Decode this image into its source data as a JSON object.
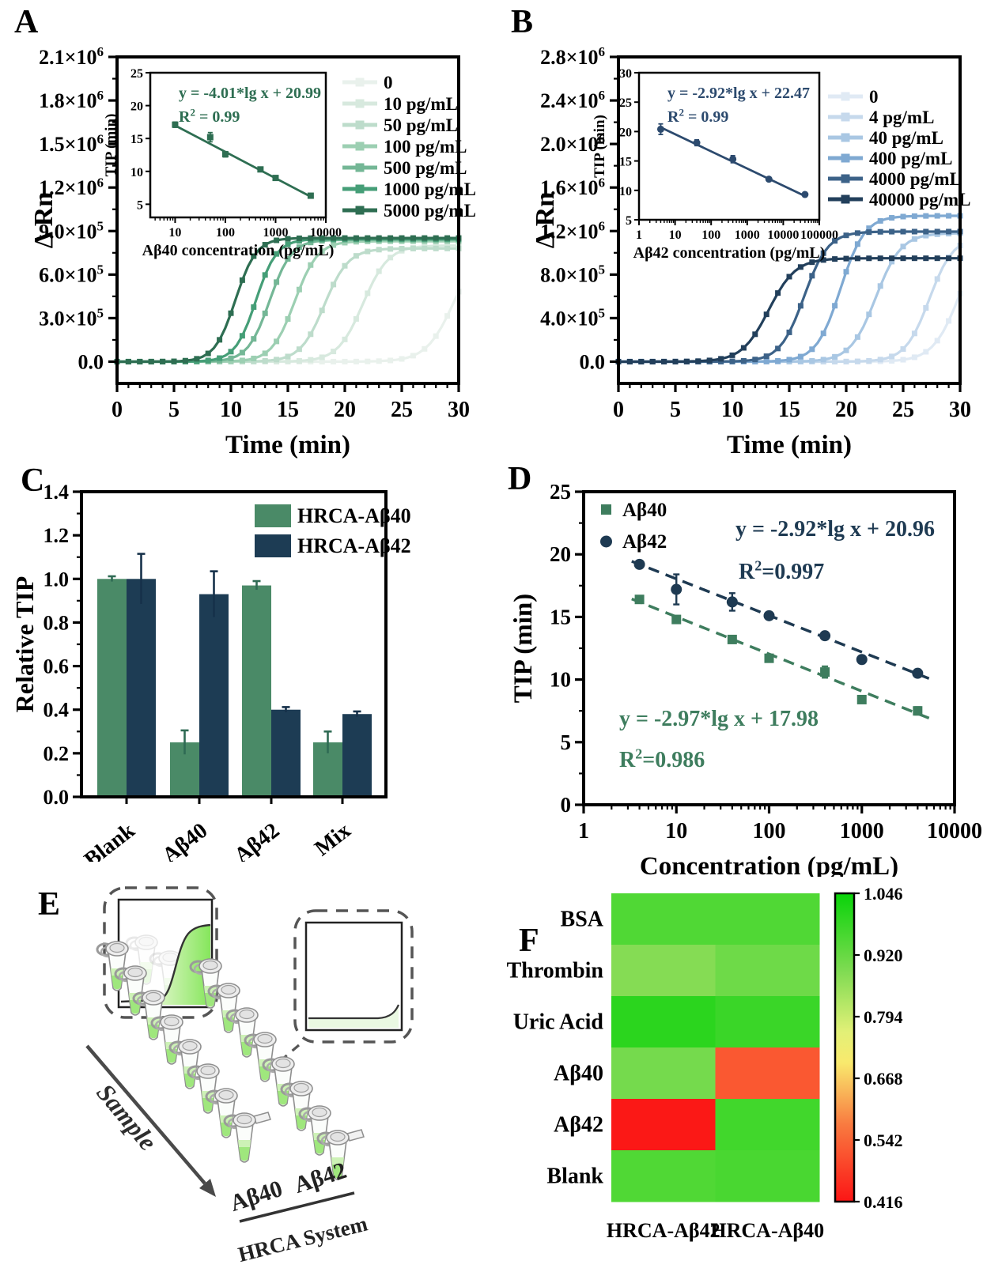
{
  "figure": {
    "background": "#ffffff"
  },
  "chart_data": [
    {
      "id": "A",
      "letter": "A",
      "type": "line",
      "xlabel": "Time (min)",
      "ylabel": "Δ Rn",
      "xlim": [
        0,
        30
      ],
      "ylim": [
        -150000,
        2100000
      ],
      "x_ticks": [
        0,
        5,
        10,
        15,
        20,
        25,
        30
      ],
      "y_ticks": [
        {
          "v": 0,
          "t": "0.0"
        },
        {
          "v": 300000,
          "t": "3.0×10^5"
        },
        {
          "v": 600000,
          "t": "6.0×10^5"
        },
        {
          "v": 900000,
          "t": "9.0×10^5"
        },
        {
          "v": 1200000,
          "t": "1.2×10^6"
        },
        {
          "v": 1500000,
          "t": "1.5×10^6"
        },
        {
          "v": 1800000,
          "t": "1.8×10^6"
        },
        {
          "v": 2100000,
          "t": "2.1×10^6"
        }
      ],
      "series": [
        {
          "label": "0",
          "color": "#e9f1ec",
          "mid": 29.6,
          "k": 0.82,
          "plateau": 830000
        },
        {
          "label": "10 pg/mL",
          "color": "#d7e9de",
          "mid": 21.6,
          "k": 0.9,
          "plateau": 800000
        },
        {
          "label": "50 pg/mL",
          "color": "#bddccb",
          "mid": 18.2,
          "k": 0.95,
          "plateau": 780000
        },
        {
          "label": "100 pg/mL",
          "color": "#9ccfb2",
          "mid": 15.6,
          "k": 1.0,
          "plateau": 830000
        },
        {
          "label": "500 pg/mL",
          "color": "#74b796",
          "mid": 13.4,
          "k": 1.05,
          "plateau": 840000
        },
        {
          "label": "1000 pg/mL",
          "color": "#459e77",
          "mid": 12.2,
          "k": 1.1,
          "plateau": 845000
        },
        {
          "label": "5000 pg/mL",
          "color": "#2e6e52",
          "mid": 10.4,
          "k": 1.1,
          "plateau": 852000
        }
      ],
      "inset": {
        "equation": "y = -4.01*lg x + 20.99",
        "r2": "R^2 = 0.99",
        "xlabel": "Aβ40 concentration (pg/mL)",
        "ylabel": "TIP (min)",
        "color": "#2e6e52",
        "marker": "square",
        "xlim": [
          3.2,
          10000
        ],
        "x_ticks": [
          10,
          100,
          1000,
          10000
        ],
        "ylim": [
          3,
          25
        ],
        "y_ticks": [
          5,
          10,
          15,
          20,
          25
        ],
        "x": [
          10,
          50,
          100,
          500,
          1000,
          5000
        ],
        "y": [
          17.1,
          15.2,
          12.6,
          10.3,
          9.0,
          6.3
        ],
        "err": [
          0.4,
          0.7,
          0.4,
          0.3,
          0.25,
          0.2
        ],
        "fit": {
          "slope": -4.01,
          "intercept": 20.99
        }
      }
    },
    {
      "id": "B",
      "letter": "B",
      "type": "line",
      "xlabel": "Time (min)",
      "ylabel": "Δ Rn",
      "xlim": [
        0,
        30
      ],
      "ylim": [
        -200000,
        2800000
      ],
      "x_ticks": [
        0,
        5,
        10,
        15,
        20,
        25,
        30
      ],
      "y_ticks": [
        {
          "v": 0,
          "t": "0.0"
        },
        {
          "v": 400000,
          "t": "4.0×10^5"
        },
        {
          "v": 800000,
          "t": "8.0×10^5"
        },
        {
          "v": 1200000,
          "t": "1.2×10^6"
        },
        {
          "v": 1600000,
          "t": "1.6×10^6"
        },
        {
          "v": 2000000,
          "t": "2.0×10^6"
        },
        {
          "v": 2400000,
          "t": "2.4×10^6"
        },
        {
          "v": 2800000,
          "t": "2.8×10^6"
        }
      ],
      "series": [
        {
          "label": "0",
          "color": "#e0eaf4",
          "mid": 30.0,
          "k": 0.85,
          "plateau": 1250000
        },
        {
          "label": "4 pg/mL",
          "color": "#c6d9ec",
          "mid": 27.3,
          "k": 0.95,
          "plateau": 1150000
        },
        {
          "label": "40 pg/mL",
          "color": "#a9c7e3",
          "mid": 22.6,
          "k": 0.9,
          "plateau": 1180000
        },
        {
          "label": "400 pg/mL",
          "color": "#7fa9d2",
          "mid": 19.5,
          "k": 0.95,
          "plateau": 1340000
        },
        {
          "label": "4000 pg/mL",
          "color": "#3c6288",
          "mid": 16.3,
          "k": 0.95,
          "plateau": 1195000
        },
        {
          "label": "40000 pg/mL",
          "color": "#223f5b",
          "mid": 13.2,
          "k": 0.85,
          "plateau": 950000
        }
      ],
      "inset": {
        "equation": "y = -2.92*lg x + 22.47",
        "r2": "R^2 = 0.99",
        "xlabel": "Aβ42 concentration (pg/mL)",
        "ylabel": "TIP (min)",
        "color": "#2c4a6e",
        "marker": "circle",
        "xlim": [
          1,
          100000
        ],
        "x_ticks": [
          1,
          10,
          100,
          1000,
          10000,
          100000
        ],
        "ylim": [
          5,
          30
        ],
        "y_ticks": [
          5,
          10,
          15,
          20,
          25,
          30
        ],
        "x": [
          4,
          40,
          400,
          4000,
          40000
        ],
        "y": [
          20.4,
          18.1,
          15.3,
          11.9,
          9.3
        ],
        "err": [
          0.9,
          0.5,
          0.6,
          0.3,
          0.35
        ],
        "fit": {
          "slope": -2.92,
          "intercept": 22.47
        }
      }
    },
    {
      "id": "C",
      "letter": "C",
      "type": "bar",
      "ylabel": "Relative TIP",
      "ylim": [
        0,
        1.4
      ],
      "y_ticks": [
        0.0,
        0.2,
        0.4,
        0.6,
        0.8,
        1.0,
        1.2,
        1.4
      ],
      "categories": [
        "Blank",
        "Aβ40",
        "Aβ42",
        "Mix"
      ],
      "series": [
        {
          "name": "HRCA-Aβ40",
          "color": "#4a8a67",
          "error_color": "#2f6b54",
          "values": [
            1.0,
            0.25,
            0.97,
            0.25
          ],
          "errors": [
            0.012,
            0.055,
            0.02,
            0.05
          ]
        },
        {
          "name": "HRCA-Aβ42",
          "color": "#1d3c54",
          "error_color": "#16314a",
          "values": [
            1.0,
            0.93,
            0.4,
            0.38
          ],
          "errors": [
            0.115,
            0.105,
            0.012,
            0.012
          ]
        }
      ]
    },
    {
      "id": "D",
      "letter": "D",
      "type": "scatter",
      "xlabel": "Concentration (pg/mL)",
      "ylabel": "TIP (min)",
      "xlim_log": [
        1,
        10000
      ],
      "ylim": [
        0,
        25
      ],
      "x_ticks": [
        1,
        10,
        100,
        1000,
        10000
      ],
      "y_ticks": [
        0,
        5,
        10,
        15,
        20,
        25
      ],
      "series": [
        {
          "name": "Aβ40",
          "marker": "square",
          "color": "#3e7d5e",
          "x": [
            4,
            10,
            40,
            100,
            400,
            1000,
            4000
          ],
          "y": [
            16.4,
            14.8,
            13.2,
            11.7,
            10.6,
            8.4,
            7.5
          ],
          "err": [
            0.2,
            0.25,
            0.2,
            0.2,
            0.45,
            0.25,
            0.3
          ],
          "fit": {
            "slope": -2.97,
            "intercept": 17.98
          },
          "equation": "y = -2.97*lg x + 17.98",
          "r2": "R^2=0.986"
        },
        {
          "name": "Aβ42",
          "marker": "circle",
          "color": "#1e3a52",
          "x": [
            4,
            10,
            40,
            100,
            400,
            1000,
            4000
          ],
          "y": [
            19.2,
            17.2,
            16.2,
            15.1,
            13.5,
            11.6,
            10.5
          ],
          "err": [
            0.25,
            1.2,
            0.7,
            0.2,
            0.2,
            0.3,
            0.25
          ],
          "fit": {
            "slope": -2.92,
            "intercept": 20.96
          },
          "equation": "y = -2.92*lg x + 20.96",
          "r2": "R^2=0.997"
        }
      ]
    },
    {
      "id": "E",
      "letter": "E",
      "type": "diagram",
      "sample_arrow_label": "Sample",
      "strip_labels": [
        "Aβ40",
        "Aβ42"
      ],
      "system_label": "HRCA System",
      "positive_inset_icon": "sigmoid-amplification-curve",
      "negative_inset_icon": "flat-baseline-curve",
      "liquid_color": "#9fe77d",
      "curve_fill_color": "#86e65c"
    },
    {
      "id": "F",
      "letter": "F",
      "type": "heatmap",
      "rows": [
        "BSA",
        "Thrombin",
        "Uric Acid",
        "Aβ40",
        "Aβ42",
        "Blank"
      ],
      "cols": [
        "HRCA-Aβ42",
        "HRCA-Aβ40"
      ],
      "values": [
        [
          0.95,
          0.95
        ],
        [
          0.88,
          0.91
        ],
        [
          1.0,
          0.98
        ],
        [
          0.9,
          0.52
        ],
        [
          0.42,
          0.97
        ],
        [
          0.95,
          0.96
        ]
      ],
      "colorbar": {
        "min": 0.416,
        "max": 1.046,
        "ticks": [
          "1.046",
          "0.920",
          "0.794",
          "0.668",
          "0.542",
          "0.416"
        ],
        "stops": [
          [
            0,
            "#fb1515"
          ],
          [
            0.25,
            "#f97a40"
          ],
          [
            0.45,
            "#f9e96d"
          ],
          [
            0.55,
            "#e2f077"
          ],
          [
            0.75,
            "#7edb52"
          ],
          [
            1,
            "#09d309"
          ]
        ]
      }
    }
  ]
}
